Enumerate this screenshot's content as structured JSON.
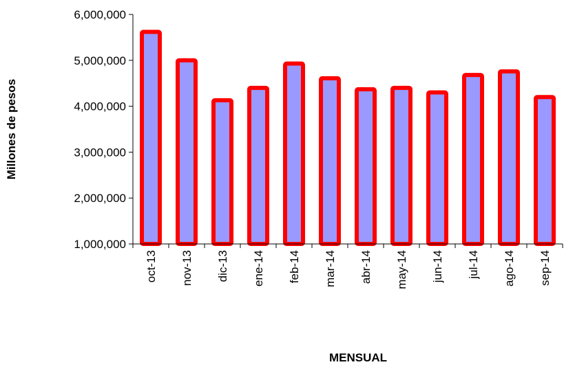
{
  "chart_data": {
    "type": "bar",
    "title": "",
    "xlabel": "MENSUAL",
    "ylabel": "Millones de pesos",
    "categories": [
      "oct-13",
      "nov-13",
      "dic-13",
      "ene-14",
      "feb-14",
      "mar-14",
      "abr-14",
      "may-14",
      "jun-14",
      "jul-14",
      "ago-14",
      "sep-14"
    ],
    "values": [
      5620000,
      5000000,
      4130000,
      4400000,
      4930000,
      4610000,
      4370000,
      4400000,
      4300000,
      4680000,
      4760000,
      4200000
    ],
    "ylim": [
      1000000,
      6000000
    ],
    "yticks": [
      1000000,
      2000000,
      3000000,
      4000000,
      5000000,
      6000000
    ],
    "ytick_labels": [
      "1,000,000",
      "2,000,000",
      "3,000,000",
      "4,000,000",
      "5,000,000",
      "6,000,000"
    ],
    "grid": false,
    "legend": "none",
    "colors": {
      "bar_fill": "#9999ff",
      "bar_border": "#ff0000",
      "axis": "#000000"
    }
  }
}
